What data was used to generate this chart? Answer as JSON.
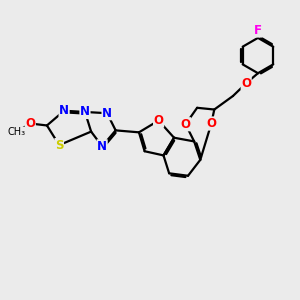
{
  "background_color": "#ebebeb",
  "bond_color": "#000000",
  "atom_colors": {
    "N": "#0000ff",
    "O": "#ff0000",
    "S": "#cccc00",
    "F": "#ff00ee",
    "C": "#000000"
  },
  "lw": 1.6,
  "figsize": [
    3.0,
    3.0
  ],
  "dpi": 100,
  "xlim": [
    -1.5,
    10.5
  ],
  "ylim": [
    -1.0,
    9.0
  ]
}
